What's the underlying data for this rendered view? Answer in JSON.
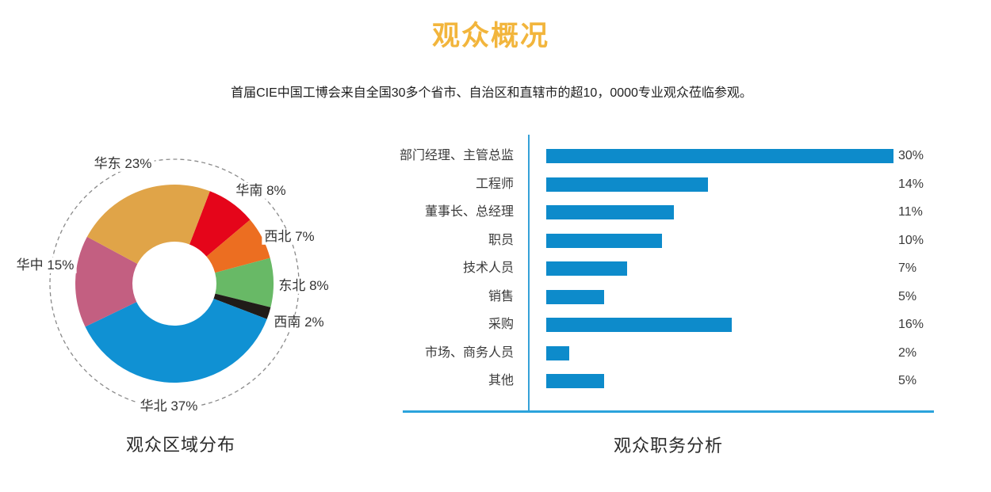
{
  "page": {
    "title": "观众概况",
    "subtitle": "首届CIE中国工博会来自全国30多个省市、自治区和直辖市的超10，0000专业观众莅临参观。"
  },
  "colors": {
    "title_gold": "#F2B53C",
    "bar_blue": "#0D8BCB",
    "axis_blue": "#2BA3DC",
    "dashed_circle": "#8A8A8A",
    "text_dark": "#3a3a3a"
  },
  "chart_data": [
    {
      "type": "pie",
      "subtype": "donut",
      "title": "观众区域分布",
      "start_angle_deg_clockwise_from_top": 21,
      "legend_position": "around",
      "segments": [
        {
          "label": "华南",
          "value": 8,
          "label_text": "华南 8%",
          "color": "#E5051A"
        },
        {
          "label": "西北",
          "value": 7,
          "label_text": "西北 7%",
          "color": "#EC6E21"
        },
        {
          "label": "东北",
          "value": 8,
          "label_text": "东北 8%",
          "color": "#68B966"
        },
        {
          "label": "西南",
          "value": 2,
          "label_text": "西南 2%",
          "color": "#201B18"
        },
        {
          "label": "华北",
          "value": 37,
          "label_text": "华北 37%",
          "color": "#1091D3"
        },
        {
          "label": "华中",
          "value": 15,
          "label_text": "华中 15%",
          "color": "#C35F81"
        },
        {
          "label": "华东",
          "value": 23,
          "label_text": "华东 23%",
          "color": "#E0A448"
        }
      ]
    },
    {
      "type": "bar",
      "orientation": "horizontal",
      "title": "观众职务分析",
      "categories": [
        "部门经理、主管总监",
        "工程师",
        "董事长、总经理",
        "职员",
        "技术人员",
        "销售",
        "采购",
        "市场、商务人员",
        "其他"
      ],
      "values": [
        30,
        14,
        11,
        10,
        7,
        5,
        16,
        2,
        5
      ],
      "value_labels": [
        "30%",
        "14%",
        "11%",
        "10%",
        "7%",
        "5%",
        "16%",
        "2%",
        "5%"
      ],
      "xlim": [
        0,
        30
      ],
      "grid": false
    }
  ]
}
